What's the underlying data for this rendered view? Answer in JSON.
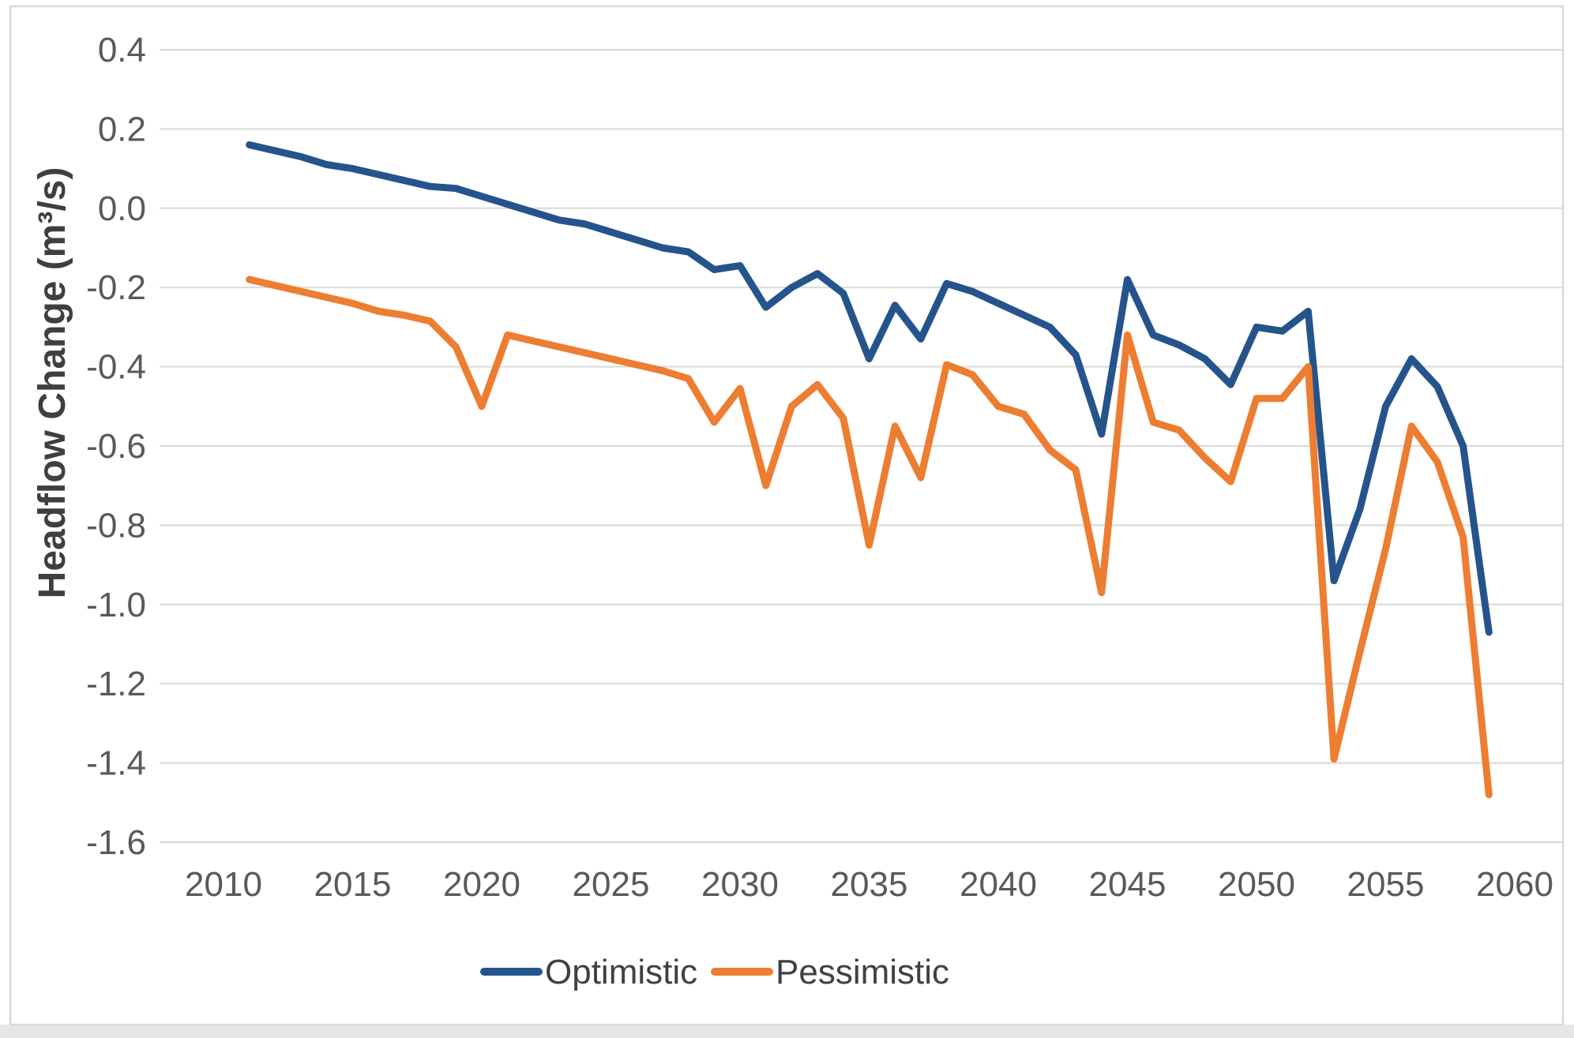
{
  "chart_data": {
    "type": "line",
    "title": "",
    "xlabel": "",
    "ylabel": "Headflow Change  (m³/s)",
    "ylim": [
      -1.6,
      0.4
    ],
    "ytick_step": 0.2,
    "grid": "horizontal",
    "legend_position": "bottom-center",
    "yticks": [
      "0.4",
      "0.2",
      "0.0",
      "-0.2",
      "-0.4",
      "-0.6",
      "-0.8",
      "-1.0",
      "-1.2",
      "-1.4",
      "-1.6"
    ],
    "xticks": [
      2010,
      2015,
      2020,
      2025,
      2030,
      2035,
      2040,
      2045,
      2050,
      2055,
      2060
    ],
    "x": [
      2011,
      2012,
      2013,
      2014,
      2015,
      2016,
      2017,
      2018,
      2019,
      2020,
      2021,
      2022,
      2023,
      2024,
      2025,
      2026,
      2027,
      2028,
      2029,
      2030,
      2031,
      2032,
      2033,
      2034,
      2035,
      2036,
      2037,
      2038,
      2039,
      2040,
      2041,
      2042,
      2043,
      2044,
      2045,
      2046,
      2047,
      2048,
      2049,
      2050,
      2051,
      2052,
      2053,
      2054,
      2055,
      2056,
      2057,
      2058,
      2059
    ],
    "series": [
      {
        "name": "Optimistic",
        "color": "#25548C",
        "values": [
          0.16,
          0.145,
          0.13,
          0.11,
          0.1,
          0.085,
          0.07,
          0.055,
          0.05,
          0.03,
          0.01,
          -0.01,
          -0.03,
          -0.04,
          -0.06,
          -0.08,
          -0.1,
          -0.11,
          -0.155,
          -0.145,
          -0.25,
          -0.2,
          -0.165,
          -0.215,
          -0.38,
          -0.245,
          -0.33,
          -0.19,
          -0.21,
          -0.24,
          -0.27,
          -0.3,
          -0.37,
          -0.57,
          -0.18,
          -0.32,
          -0.345,
          -0.38,
          -0.445,
          -0.3,
          -0.31,
          -0.26,
          -0.94,
          -0.76,
          -0.5,
          -0.38,
          -0.45,
          -0.6,
          -1.07
        ]
      },
      {
        "name": "Pessimistic",
        "color": "#ED7D31",
        "values": [
          -0.18,
          -0.195,
          -0.21,
          -0.225,
          -0.24,
          -0.26,
          -0.27,
          -0.285,
          -0.35,
          -0.5,
          -0.32,
          -0.335,
          -0.35,
          -0.365,
          -0.38,
          -0.395,
          -0.41,
          -0.43,
          -0.54,
          -0.455,
          -0.7,
          -0.5,
          -0.445,
          -0.53,
          -0.85,
          -0.55,
          -0.68,
          -0.395,
          -0.42,
          -0.5,
          -0.52,
          -0.61,
          -0.66,
          -0.97,
          -0.32,
          -0.54,
          -0.56,
          -0.63,
          -0.69,
          -0.48,
          -0.48,
          -0.4,
          -1.39,
          -1.12,
          -0.86,
          -0.55,
          -0.64,
          -0.83,
          -1.48
        ]
      }
    ]
  },
  "colors": {
    "background": "#FFFFFF",
    "grid": "#D9D9D9",
    "frame": "#D9D9D9",
    "tick_text": "#595959",
    "axis_title_text": "#3F3F3F",
    "legend_text": "#404040",
    "bottom_strip": "#E7E6E6"
  }
}
